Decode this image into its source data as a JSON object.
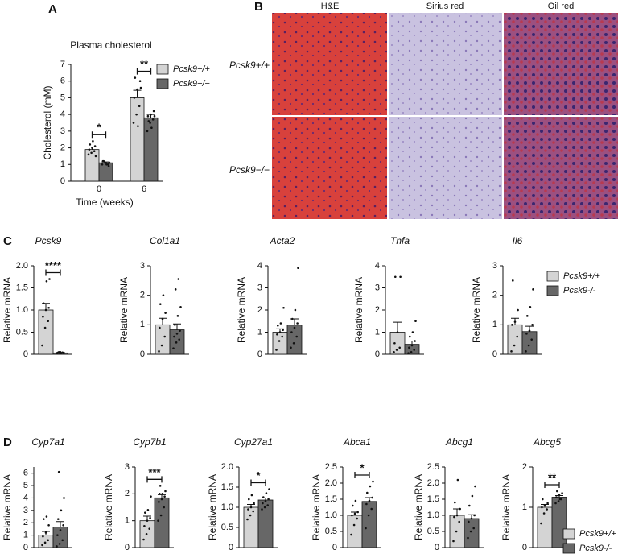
{
  "figure_labels": [
    "A",
    "B",
    "C",
    "D"
  ],
  "images": {
    "columns": [
      "H&E",
      "Sirius red",
      "Oil red"
    ],
    "rows": [
      "Pcsk9+/+",
      "Pcsk9−/−"
    ]
  },
  "chart_data": [
    {
      "type": "bar",
      "title": "Plasma cholesterol",
      "ylabel": "Cholesterol (mM)",
      "xlabel": "Time (weeks)",
      "categories": [
        "0",
        "6"
      ],
      "ylim": [
        0,
        7
      ],
      "yticks": [
        0,
        1,
        2,
        3,
        4,
        5,
        6,
        7
      ],
      "significance": [
        "*",
        "**"
      ],
      "series": [
        {
          "name": "Pcsk9+/+",
          "color": "#d4d4d4",
          "values": [
            1.9,
            5.0
          ],
          "errors": [
            0.15,
            0.45
          ],
          "points": [
            [
              1.6,
              1.7,
              1.8,
              1.9,
              2.0,
              2.1,
              2.2,
              2.4,
              1.5
            ],
            [
              3.5,
              4.0,
              4.5,
              5.0,
              5.5,
              6.0,
              6.2,
              3.3,
              5.6
            ]
          ]
        },
        {
          "name": "Pcsk9−/−",
          "color": "#676767",
          "values": [
            1.1,
            3.8
          ],
          "errors": [
            0.05,
            0.2
          ],
          "points": [
            [
              1.0,
              1.1,
              1.0,
              1.2,
              1.1,
              0.9,
              1.2,
              1.0,
              1.1
            ],
            [
              3.0,
              3.5,
              3.7,
              3.9,
              4.0,
              4.2,
              3.6,
              3.2,
              3.9
            ]
          ]
        }
      ]
    },
    {
      "type": "bar",
      "title": "Pcsk9",
      "ylabel": "Relative mRNA",
      "categories": [
        null
      ],
      "ylim": [
        0,
        2
      ],
      "yticks": [
        0,
        0.5,
        {
          "value": 1,
          "label": "1.0"
        },
        1.5,
        {
          "value": 2,
          "label": "2.0"
        }
      ],
      "significance": [
        "****"
      ],
      "series": [
        {
          "color": "#d4d4d4",
          "values": [
            1.0
          ],
          "errors": [
            0.15
          ],
          "points": [
            [
              0.2,
              0.6,
              0.75,
              0.85,
              1.0,
              1.05,
              1.15,
              1.65,
              1.7
            ]
          ]
        },
        {
          "color": "#676767",
          "values": [
            0.03
          ],
          "errors": [
            0.01
          ],
          "points": [
            [
              0.02,
              0.03,
              0.04,
              0.02,
              0.05,
              0.03,
              0.04,
              0.02,
              0.03,
              0.05
            ]
          ]
        }
      ]
    },
    {
      "type": "bar",
      "title": "Col1a1",
      "ylabel": "Relative mRNA",
      "categories": [
        null
      ],
      "ylim": [
        0,
        3
      ],
      "yticks": [
        0,
        1,
        2,
        3
      ],
      "series": [
        {
          "color": "#d4d4d4",
          "values": [
            1.0
          ],
          "errors": [
            0.22
          ],
          "points": [
            [
              0.1,
              0.3,
              0.6,
              0.9,
              1.2,
              1.4,
              1.7,
              2.0
            ]
          ]
        },
        {
          "color": "#676767",
          "values": [
            0.83
          ],
          "errors": [
            0.2
          ],
          "points": [
            [
              0.2,
              0.4,
              0.5,
              0.6,
              0.7,
              0.8,
              1.0,
              1.3,
              1.6,
              2.2,
              2.55
            ]
          ]
        }
      ]
    },
    {
      "type": "bar",
      "title": "Acta2",
      "ylabel": "Relative mRNA",
      "categories": [
        null
      ],
      "ylim": [
        0,
        4
      ],
      "yticks": [
        0,
        1,
        2,
        3,
        4
      ],
      "series": [
        {
          "color": "#d4d4d4",
          "values": [
            1.0
          ],
          "errors": [
            0.15
          ],
          "points": [
            [
              0.2,
              0.6,
              0.8,
              0.9,
              1.0,
              1.1,
              1.3,
              1.4,
              2.1
            ]
          ]
        },
        {
          "color": "#676767",
          "values": [
            1.32
          ],
          "errors": [
            0.28
          ],
          "points": [
            [
              0.3,
              0.5,
              0.8,
              1.0,
              1.2,
              1.4,
              1.6,
              2.0,
              3.9
            ]
          ]
        }
      ]
    },
    {
      "type": "bar",
      "title": "Tnfa",
      "ylabel": "Relative mRNA",
      "categories": [
        null
      ],
      "ylim": [
        0,
        4
      ],
      "yticks": [
        0,
        1,
        2,
        3,
        4
      ],
      "series": [
        {
          "color": "#d4d4d4",
          "values": [
            1.0
          ],
          "errors": [
            0.45
          ],
          "points": [
            [
              0.1,
              0.2,
              0.3,
              0.5,
              1.0,
              3.5,
              3.5
            ]
          ]
        },
        {
          "color": "#676767",
          "values": [
            0.45
          ],
          "errors": [
            0.15
          ],
          "points": [
            [
              0.05,
              0.1,
              0.2,
              0.3,
              0.4,
              0.6,
              0.8,
              1.0,
              1.5
            ]
          ]
        }
      ]
    },
    {
      "type": "bar",
      "title": "Il6",
      "ylabel": "Relative mRNA",
      "categories": [
        null
      ],
      "ylim": [
        0,
        3
      ],
      "yticks": [
        0,
        1,
        2,
        3
      ],
      "series": [
        {
          "name": "Pcsk9+/+",
          "color": "#d4d4d4",
          "values": [
            1.0
          ],
          "errors": [
            0.22
          ],
          "points": [
            [
              0.1,
              0.3,
              0.6,
              1.0,
              1.1,
              1.5,
              2.5
            ]
          ]
        },
        {
          "name": "Pcsk9-/-",
          "color": "#676767",
          "values": [
            0.77
          ],
          "errors": [
            0.18
          ],
          "points": [
            [
              0.1,
              0.3,
              0.5,
              0.7,
              0.8,
              1.0,
              1.3,
              1.6,
              2.2
            ]
          ]
        }
      ]
    },
    {
      "type": "bar",
      "title": "Cyp7a1",
      "ylabel": "Relative mRNA",
      "categories": [
        null
      ],
      "ylim": [
        0,
        6.5
      ],
      "yticks": [
        0,
        1,
        2,
        3,
        4,
        5,
        6
      ],
      "series": [
        {
          "color": "#d4d4d4",
          "values": [
            1.0
          ],
          "errors": [
            0.3
          ],
          "points": [
            [
              0.2,
              0.4,
              0.6,
              0.9,
              1.2,
              1.8,
              2.3,
              2.5
            ]
          ]
        },
        {
          "color": "#676767",
          "values": [
            1.65
          ],
          "errors": [
            0.45
          ],
          "points": [
            [
              0.1,
              0.3,
              0.6,
              1.0,
              1.4,
              1.8,
              2.3,
              3.0,
              4.0,
              6.1
            ]
          ]
        }
      ]
    },
    {
      "type": "bar",
      "title": "Cyp7b1",
      "ylabel": "Relative mRNA",
      "categories": [
        null
      ],
      "ylim": [
        0,
        3
      ],
      "yticks": [
        0,
        1,
        2,
        3
      ],
      "significance": [
        "***"
      ],
      "series": [
        {
          "color": "#d4d4d4",
          "values": [
            1.0
          ],
          "errors": [
            0.17
          ],
          "points": [
            [
              0.3,
              0.5,
              0.7,
              0.8,
              1.0,
              1.1,
              1.3,
              1.4,
              1.9
            ]
          ]
        },
        {
          "color": "#676767",
          "values": [
            1.85
          ],
          "errors": [
            0.12
          ],
          "points": [
            [
              1.0,
              1.2,
              1.5,
              1.7,
              1.8,
              1.9,
              2.0,
              2.0,
              2.1,
              2.3
            ]
          ]
        }
      ]
    },
    {
      "type": "bar",
      "title": "Cyp27a1",
      "ylabel": "Relative mRNA",
      "categories": [
        null
      ],
      "ylim": [
        0,
        2
      ],
      "yticks": [
        0,
        0.5,
        {
          "value": 1,
          "label": "1.0"
        },
        1.5,
        {
          "value": 2,
          "label": "2.0"
        }
      ],
      "significance": [
        "*"
      ],
      "series": [
        {
          "color": "#d4d4d4",
          "values": [
            1.0
          ],
          "errors": [
            0.07
          ],
          "points": [
            [
              0.7,
              0.8,
              0.9,
              0.95,
              1.0,
              1.1,
              1.2,
              1.3
            ]
          ]
        },
        {
          "color": "#676767",
          "values": [
            1.18
          ],
          "errors": [
            0.05
          ],
          "points": [
            [
              0.95,
              1.0,
              1.05,
              1.1,
              1.15,
              1.2,
              1.25,
              1.35,
              1.45
            ]
          ]
        }
      ]
    },
    {
      "type": "bar",
      "title": "Abca1",
      "ylabel": "Relative mRNA",
      "categories": [
        null
      ],
      "ylim": [
        0,
        2.5
      ],
      "yticks": [
        0,
        0.5,
        {
          "value": 1,
          "label": "1.0"
        },
        1.5,
        {
          "value": 2,
          "label": "2.0"
        },
        2.5
      ],
      "significance": [
        "*"
      ],
      "series": [
        {
          "color": "#d4d4d4",
          "values": [
            1.0
          ],
          "errors": [
            0.1
          ],
          "points": [
            [
              0.4,
              0.7,
              0.9,
              1.0,
              1.05,
              1.1,
              1.3,
              1.45
            ]
          ]
        },
        {
          "color": "#676767",
          "values": [
            1.43
          ],
          "errors": [
            0.12
          ],
          "points": [
            [
              0.6,
              1.0,
              1.2,
              1.35,
              1.45,
              1.55,
              1.7,
              1.9,
              2.05
            ]
          ]
        }
      ]
    },
    {
      "type": "bar",
      "title": "Abcg1",
      "ylabel": "Relative mRNA",
      "categories": [
        null
      ],
      "ylim": [
        0,
        2.5
      ],
      "yticks": [
        0,
        0.5,
        {
          "value": 1,
          "label": "1.0"
        },
        1.5,
        {
          "value": 2,
          "label": "2.0"
        },
        2.5
      ],
      "series": [
        {
          "color": "#d4d4d4",
          "values": [
            1.0
          ],
          "errors": [
            0.2
          ],
          "points": [
            [
              0.2,
              0.5,
              0.8,
              0.95,
              1.0,
              1.2,
              1.4,
              2.1
            ]
          ]
        },
        {
          "color": "#676767",
          "values": [
            0.9
          ],
          "errors": [
            0.12
          ],
          "points": [
            [
              0.3,
              0.5,
              0.6,
              0.8,
              0.9,
              1.0,
              1.3,
              1.6,
              1.9
            ]
          ]
        }
      ]
    },
    {
      "type": "bar",
      "title": "Abcg5",
      "ylabel": "Relative mRNA",
      "categories": [
        null
      ],
      "ylim": [
        0,
        2
      ],
      "yticks": [
        0,
        1,
        2
      ],
      "significance": [
        "**"
      ],
      "series": [
        {
          "name": "Pcsk9+/+",
          "color": "#d4d4d4",
          "values": [
            1.0
          ],
          "errors": [
            0.07
          ],
          "points": [
            [
              0.6,
              0.85,
              0.95,
              1.0,
              1.05,
              1.1,
              1.2
            ]
          ]
        },
        {
          "name": "Pcsk9-/-",
          "color": "#676767",
          "values": [
            1.25
          ],
          "errors": [
            0.04
          ],
          "points": [
            [
              1.1,
              1.15,
              1.2,
              1.25,
              1.3,
              1.35,
              1.4,
              1.2
            ]
          ]
        }
      ]
    }
  ]
}
